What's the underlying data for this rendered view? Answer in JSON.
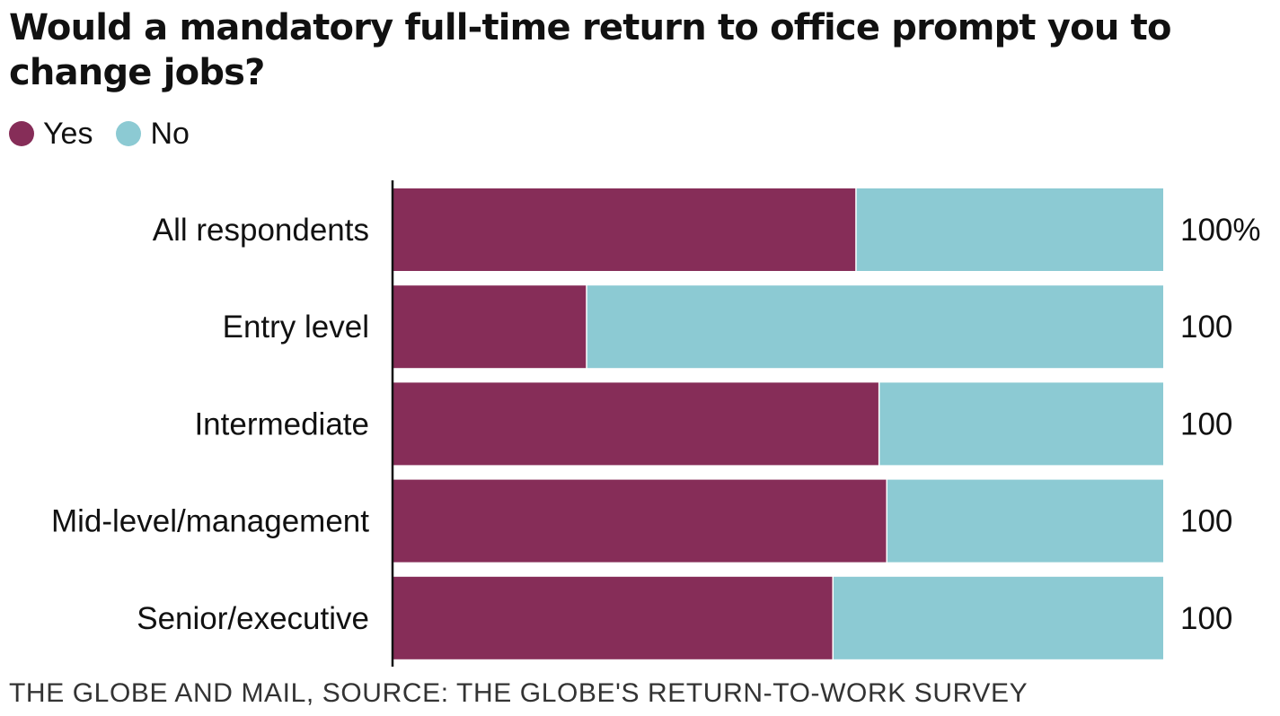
{
  "chart_data": {
    "type": "bar",
    "orientation": "horizontal",
    "stacked": true,
    "title": "Would a mandatory full-time return to office prompt you to change jobs?",
    "categories": [
      "All respondents",
      "Entry level",
      "Intermediate",
      "Mid-level/management",
      "Senior/executive"
    ],
    "series": [
      {
        "name": "Yes",
        "color": "#862d58",
        "values": [
          60,
          25,
          63,
          64,
          57
        ]
      },
      {
        "name": "No",
        "color": "#8ccad3",
        "values": [
          40,
          75,
          37,
          36,
          43
        ]
      }
    ],
    "totals": [
      "100%",
      "100",
      "100",
      "100",
      "100"
    ],
    "xlim": [
      0,
      100
    ],
    "legend_position": "top-left",
    "grid": false,
    "source": "THE GLOBE AND MAIL, SOURCE: THE GLOBE'S RETURN-TO-WORK SURVEY"
  }
}
